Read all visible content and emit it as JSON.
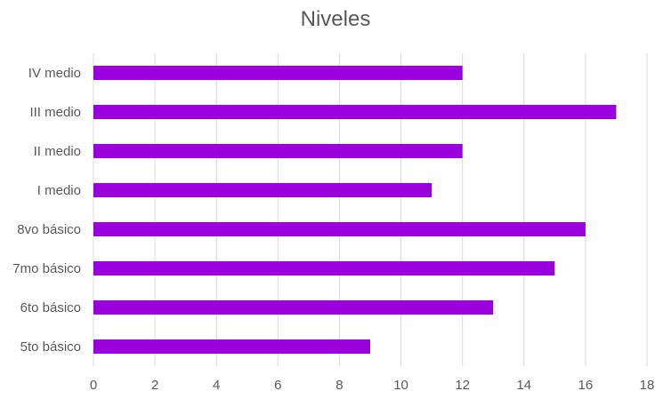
{
  "chart_data": {
    "type": "bar",
    "orientation": "horizontal",
    "title": "Niveles",
    "categories": [
      "IV medio",
      "III medio",
      "II medio",
      "I medio",
      "8vo básico",
      "7mo básico",
      "6to básico",
      "5to básico"
    ],
    "values": [
      12,
      17,
      12,
      11,
      16,
      15,
      13,
      9
    ],
    "xlim": [
      0,
      18
    ],
    "xticks": [
      0,
      2,
      4,
      6,
      8,
      10,
      12,
      14,
      16,
      18
    ],
    "grid": "vertical",
    "legend": "none",
    "colors": {
      "bar": "#9900dd",
      "grid": "#d9d9d9",
      "text": "#595959"
    }
  }
}
